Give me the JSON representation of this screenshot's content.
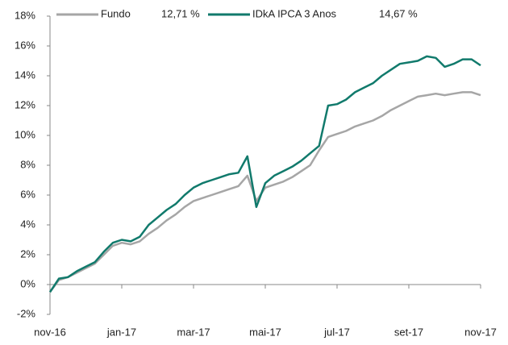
{
  "chart_data": {
    "type": "line",
    "categories": [
      "nov-16",
      null,
      null,
      null,
      null,
      null,
      null,
      null,
      "jan-17",
      null,
      null,
      null,
      null,
      null,
      null,
      null,
      "mar-17",
      null,
      null,
      null,
      null,
      null,
      null,
      null,
      "mai-17",
      null,
      null,
      null,
      null,
      null,
      null,
      null,
      "jul-17",
      null,
      null,
      null,
      null,
      null,
      null,
      null,
      "set-17",
      null,
      null,
      null,
      null,
      null,
      null,
      null,
      "nov-17"
    ],
    "series": [
      {
        "name": "Fundo",
        "legend_label": "12,71 %",
        "color": "#a6a6a6",
        "values": [
          -0.5,
          0.3,
          0.5,
          0.8,
          1.1,
          1.4,
          2.0,
          2.6,
          2.8,
          2.7,
          2.9,
          3.4,
          3.8,
          4.3,
          4.7,
          5.2,
          5.6,
          5.8,
          6.0,
          6.2,
          6.4,
          6.6,
          7.3,
          5.6,
          6.5,
          6.7,
          6.9,
          7.2,
          7.6,
          8.0,
          9.0,
          9.9,
          10.1,
          10.3,
          10.6,
          10.8,
          11.0,
          11.3,
          11.7,
          12.0,
          12.3,
          12.6,
          12.7,
          12.8,
          12.7,
          12.8,
          12.9,
          12.9,
          12.7
        ]
      },
      {
        "name": "IDkA IPCA 3 Anos",
        "legend_label": "14,67 %",
        "color": "#117a6c",
        "values": [
          -0.5,
          0.4,
          0.5,
          0.9,
          1.2,
          1.5,
          2.2,
          2.8,
          3.0,
          2.9,
          3.2,
          4.0,
          4.5,
          5.0,
          5.4,
          6.0,
          6.5,
          6.8,
          7.0,
          7.2,
          7.4,
          7.5,
          8.6,
          5.2,
          6.8,
          7.3,
          7.6,
          7.9,
          8.3,
          8.8,
          9.3,
          12.0,
          12.1,
          12.4,
          12.9,
          13.2,
          13.5,
          14.0,
          14.4,
          14.8,
          14.9,
          15.0,
          15.3,
          15.2,
          14.6,
          14.8,
          15.1,
          15.1,
          14.7
        ]
      }
    ],
    "ylim": [
      -2,
      18
    ],
    "yticks": [
      {
        "value": -2,
        "label": "-2%"
      },
      {
        "value": 0,
        "label": "0%"
      },
      {
        "value": 2,
        "label": "2%"
      },
      {
        "value": 4,
        "label": "4%"
      },
      {
        "value": 6,
        "label": "6%"
      },
      {
        "value": 8,
        "label": "8%"
      },
      {
        "value": 10,
        "label": "10%"
      },
      {
        "value": 12,
        "label": "12%"
      },
      {
        "value": 14,
        "label": "14%"
      },
      {
        "value": 16,
        "label": "16%"
      },
      {
        "value": 18,
        "label": "18%"
      }
    ],
    "grid": false,
    "legend": "top"
  }
}
